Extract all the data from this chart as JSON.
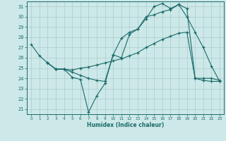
{
  "xlabel": "Humidex (Indice chaleur)",
  "xlim": [
    -0.5,
    23.5
  ],
  "ylim": [
    20.5,
    31.5
  ],
  "xticks": [
    0,
    1,
    2,
    3,
    4,
    5,
    6,
    7,
    8,
    9,
    10,
    11,
    12,
    13,
    14,
    15,
    16,
    17,
    18,
    19,
    20,
    21,
    22,
    23
  ],
  "yticks": [
    21,
    22,
    23,
    24,
    25,
    26,
    27,
    28,
    29,
    30,
    31
  ],
  "bg_color": "#cde8e8",
  "line_color": "#1a6b6b",
  "grid_color": "#aacccc",
  "lines": [
    {
      "x": [
        0,
        1,
        2,
        3,
        4,
        5,
        6,
        7,
        8,
        9,
        10,
        11,
        12,
        13,
        14,
        15,
        16,
        17,
        18,
        19,
        20,
        21,
        22,
        23
      ],
      "y": [
        27.3,
        26.2,
        25.5,
        24.9,
        24.9,
        24.1,
        23.9,
        20.7,
        22.3,
        23.5,
        26.3,
        27.9,
        28.5,
        28.8,
        29.8,
        31.0,
        31.3,
        30.8,
        31.2,
        30.0,
        28.5,
        27.0,
        25.2,
        23.7
      ]
    },
    {
      "x": [
        2,
        3,
        4,
        5,
        6,
        7,
        8,
        9,
        10,
        11,
        12,
        13,
        14,
        15,
        16,
        17,
        18,
        19,
        20,
        21,
        22,
        23
      ],
      "y": [
        25.5,
        24.9,
        24.9,
        24.8,
        25.0,
        25.1,
        25.3,
        25.5,
        25.7,
        25.9,
        26.2,
        26.5,
        27.0,
        27.4,
        27.8,
        28.1,
        28.4,
        28.5,
        24.0,
        24.0,
        24.0,
        23.8
      ]
    },
    {
      "x": [
        2,
        3,
        4,
        5,
        6,
        7,
        8,
        9,
        10,
        11,
        12,
        13,
        14,
        15,
        16,
        17,
        18,
        19,
        20,
        21,
        22,
        23
      ],
      "y": [
        25.5,
        24.9,
        24.9,
        24.6,
        24.3,
        24.0,
        23.8,
        23.7,
        26.3,
        26.0,
        28.3,
        28.8,
        30.0,
        30.2,
        30.5,
        30.7,
        31.2,
        30.8,
        24.0,
        23.8,
        23.7,
        23.7
      ]
    }
  ]
}
